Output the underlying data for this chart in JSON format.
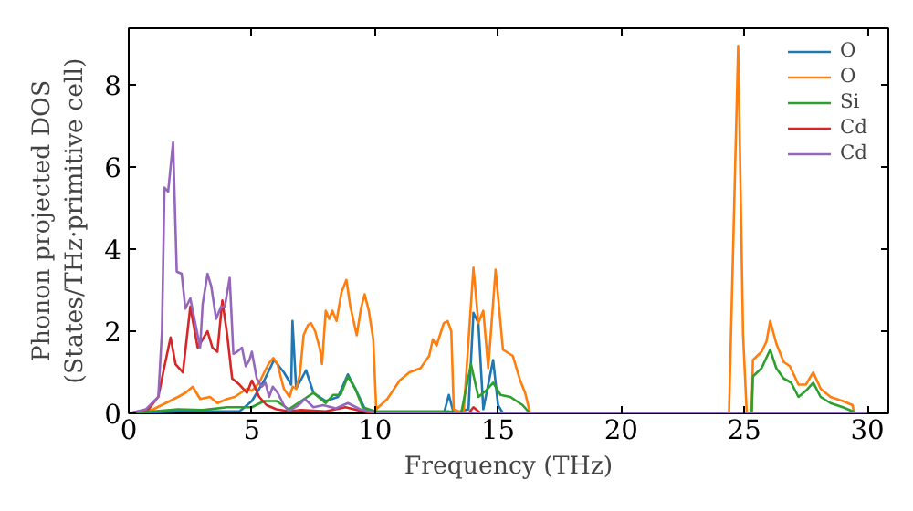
{
  "chart_data": {
    "type": "line",
    "xlabel": "Frequency (THz)",
    "ylabel": "Phonon projected DOS\n(States/THz·primitive cell)",
    "xlim": [
      0,
      30.85
    ],
    "ylim": [
      0,
      9.38
    ],
    "xticks": [
      0,
      5,
      10,
      15,
      20,
      25,
      30
    ],
    "yticks": [
      0,
      2,
      4,
      6,
      8
    ],
    "grid": false,
    "legend": "top right",
    "series": [
      {
        "name": "O",
        "color": "#1f77b4",
        "x": [
          0,
          2,
          4.5,
          5,
          5.5,
          5.9,
          6.3,
          6.6,
          6.65,
          6.8,
          7.2,
          7.5,
          8,
          8.5,
          8.9,
          9.2,
          9.6,
          10,
          12.8,
          13.0,
          13.2,
          13.8,
          14.0,
          14.2,
          14.4,
          14.8,
          15.0,
          15.2,
          30
        ],
        "values": [
          0,
          0.05,
          0.05,
          0.3,
          0.8,
          1.3,
          1.0,
          0.7,
          2.25,
          0.6,
          1.05,
          0.5,
          0.3,
          0.4,
          0.95,
          0.6,
          0.1,
          0,
          0,
          0.45,
          0,
          0.1,
          2.45,
          2.2,
          0.1,
          1.3,
          0.2,
          0,
          0
        ]
      },
      {
        "name": "O",
        "color": "#ff7f0e",
        "x": [
          0,
          1.0,
          1.5,
          2,
          2.3,
          2.6,
          2.9,
          3.3,
          3.6,
          4.0,
          4.3,
          4.8,
          5.0,
          5.3,
          5.67,
          5.87,
          6.04,
          6.3,
          6.53,
          6.66,
          6.8,
          6.95,
          7.1,
          7.28,
          7.4,
          7.57,
          7.77,
          7.85,
          8.0,
          8.14,
          8.27,
          8.44,
          8.64,
          8.84,
          9.0,
          9.26,
          9.43,
          9.58,
          9.75,
          9.93,
          10.05,
          10.5,
          11.0,
          11.4,
          11.85,
          12.2,
          12.35,
          12.5,
          12.8,
          12.95,
          13.1,
          13.2,
          13.6,
          14.0,
          14.2,
          14.4,
          14.6,
          14.9,
          15.2,
          15.6,
          15.9,
          16.1,
          16.3,
          24.38,
          24.75,
          24.95,
          25.1,
          25.3,
          25.35,
          25.7,
          25.9,
          26.05,
          26.3,
          26.6,
          26.85,
          27.2,
          27.5,
          27.8,
          28.1,
          28.5,
          29.0,
          29.4,
          29.45
        ],
        "values": [
          0,
          0.1,
          0.25,
          0.4,
          0.5,
          0.65,
          0.35,
          0.4,
          0.25,
          0.35,
          0.4,
          0.6,
          0.55,
          0.75,
          1.2,
          1.35,
          1.2,
          0.6,
          0.4,
          0.65,
          0.6,
          0.95,
          1.9,
          2.15,
          2.2,
          2.0,
          1.55,
          1.2,
          2.5,
          2.3,
          2.5,
          2.25,
          2.95,
          3.25,
          2.6,
          1.9,
          2.55,
          2.9,
          2.5,
          1.8,
          0.1,
          0.35,
          0.8,
          1.0,
          1.1,
          1.4,
          1.8,
          1.65,
          2.2,
          2.25,
          2.0,
          0.1,
          0,
          3.55,
          2.2,
          2.5,
          1.1,
          3.5,
          1.55,
          1.4,
          0.8,
          0.5,
          0,
          0,
          8.95,
          1.9,
          0,
          0,
          1.3,
          1.5,
          1.75,
          2.25,
          1.7,
          1.25,
          1.15,
          0.7,
          0.7,
          1.0,
          0.6,
          0.4,
          0.3,
          0.2,
          0
        ]
      },
      {
        "name": "Si",
        "color": "#2ca02c",
        "x": [
          0,
          1,
          2,
          3,
          4,
          5,
          5.5,
          6,
          6.5,
          7,
          7.5,
          8,
          8.3,
          8.6,
          8.9,
          9.2,
          9.5,
          10,
          13,
          13.5,
          13.9,
          14.2,
          14.5,
          14.8,
          15.1,
          15.5,
          16.0,
          16.3,
          25.3,
          25.35,
          25.7,
          26.05,
          26.3,
          26.6,
          26.9,
          27.2,
          27.5,
          27.8,
          28.1,
          28.5,
          29.0,
          29.4,
          29.45
        ],
        "values": [
          0,
          0.05,
          0.1,
          0.08,
          0.15,
          0.15,
          0.3,
          0.3,
          0.1,
          0.3,
          0.5,
          0.25,
          0.45,
          0.45,
          0.9,
          0.6,
          0.15,
          0.05,
          0.05,
          0,
          1.2,
          0.4,
          0.55,
          0.75,
          0.45,
          0.4,
          0.2,
          0,
          0,
          0.9,
          1.1,
          1.55,
          1.1,
          0.85,
          0.75,
          0.4,
          0.55,
          0.75,
          0.4,
          0.25,
          0.15,
          0.05,
          0
        ]
      },
      {
        "name": "Cd",
        "color": "#d62728",
        "x": [
          0,
          0.8,
          1.2,
          1.4,
          1.7,
          1.9,
          2.2,
          2.5,
          2.8,
          3.2,
          3.4,
          3.6,
          3.8,
          4.0,
          4.2,
          4.5,
          4.8,
          5.0,
          5.3,
          5.6,
          6.0,
          6.5,
          7,
          8,
          8.8,
          9.5,
          10,
          13.8,
          14.0,
          14.3,
          30
        ],
        "values": [
          0,
          0.1,
          0.4,
          1.0,
          1.85,
          1.2,
          1.0,
          2.6,
          1.6,
          2.0,
          1.6,
          1.5,
          2.75,
          1.9,
          0.85,
          0.7,
          0.5,
          0.8,
          0.4,
          0.2,
          0.1,
          0.05,
          0.08,
          0.05,
          0.15,
          0.05,
          0,
          0,
          0.15,
          0,
          0
        ]
      },
      {
        "name": "Cd",
        "color": "#9467bd",
        "x": [
          0,
          0.7,
          1.2,
          1.35,
          1.45,
          1.6,
          1.8,
          1.95,
          2.15,
          2.3,
          2.5,
          2.7,
          2.9,
          3.0,
          3.2,
          3.35,
          3.55,
          3.75,
          3.9,
          4.1,
          4.25,
          4.4,
          4.6,
          4.75,
          4.9,
          5.0,
          5.2,
          5.4,
          5.55,
          5.7,
          5.85,
          6.05,
          6.3,
          6.5,
          6.9,
          7.15,
          7.5,
          7.9,
          8.4,
          8.9,
          9.4,
          9.9,
          10.1,
          30
        ],
        "values": [
          0,
          0.1,
          0.4,
          2.0,
          5.5,
          5.4,
          6.6,
          3.45,
          3.4,
          2.55,
          2.8,
          2.2,
          1.6,
          2.65,
          3.4,
          3.1,
          2.3,
          2.6,
          2.6,
          3.3,
          1.45,
          1.5,
          1.6,
          1.15,
          1.3,
          1.5,
          0.85,
          0.65,
          0.75,
          0.4,
          0.65,
          0.5,
          0.2,
          0.05,
          0.2,
          0.35,
          0.15,
          0.2,
          0.12,
          0.25,
          0.1,
          0.03,
          0,
          0
        ]
      }
    ]
  }
}
